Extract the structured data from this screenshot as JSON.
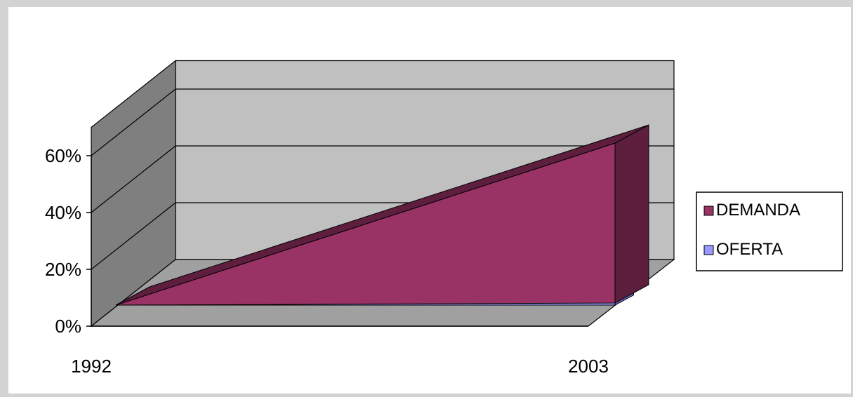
{
  "chart_data": {
    "type": "area",
    "style": "3d",
    "categories": [
      "1992",
      "2003"
    ],
    "series": [
      {
        "name": "DEMANDA",
        "values": [
          0,
          57
        ]
      },
      {
        "name": "OFERTA",
        "values": [
          0,
          1
        ]
      }
    ],
    "ylim": [
      0,
      60
    ],
    "yticks": [
      0,
      20,
      40,
      60
    ],
    "ytick_labels": [
      "0%",
      "20%",
      "40%",
      "60%"
    ],
    "grid": true,
    "legend_position": "right",
    "colors": {
      "DEMANDA": "#993366",
      "DEMANDA_dark": "#5e1e3d",
      "OFERTA": "#9999ff",
      "wall": "#c0c0c0",
      "side_wall": "#7f7f7f",
      "floor": "#a0a0a0",
      "page": "#ffffff"
    }
  }
}
